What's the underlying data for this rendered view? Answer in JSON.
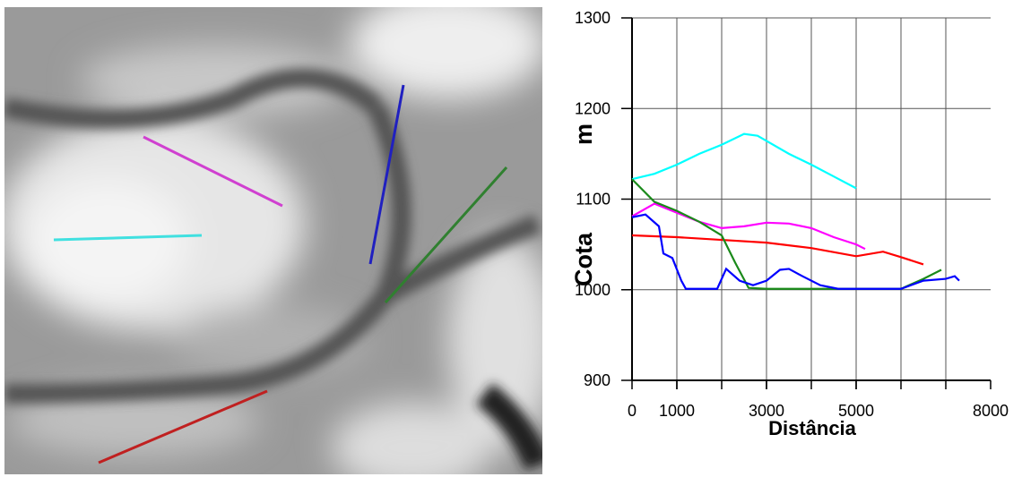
{
  "chart_data": {
    "type": "line",
    "y_label": "Cota",
    "y_unit": "m",
    "x_label": "Distância",
    "xlim": [
      0,
      8000
    ],
    "ylim": [
      900,
      1300
    ],
    "xticks": [
      0,
      1000,
      3000,
      5000,
      8000
    ],
    "xgrid": [
      1000,
      2000,
      3000,
      4000,
      5000,
      6000,
      7000
    ],
    "yticks": [
      900,
      1000,
      1100,
      1200,
      1300
    ],
    "grid": true,
    "series": [
      {
        "color": "#00ffff",
        "x": [
          0,
          500,
          1000,
          1500,
          2000,
          2500,
          2800,
          3500,
          4000,
          4500,
          5000
        ],
        "values": [
          1122,
          1128,
          1138,
          1150,
          1160,
          1172,
          1170,
          1150,
          1138,
          1125,
          1112
        ]
      },
      {
        "color": "#ff00ff",
        "x": [
          0,
          500,
          1000,
          1500,
          2000,
          2500,
          3000,
          3500,
          4000,
          4500,
          5000,
          5200
        ],
        "values": [
          1081,
          1095,
          1085,
          1075,
          1068,
          1070,
          1074,
          1073,
          1068,
          1058,
          1050,
          1045
        ]
      },
      {
        "color": "#ff0000",
        "x": [
          0,
          1000,
          2000,
          3000,
          4000,
          5000,
          5600,
          6000,
          6500
        ],
        "values": [
          1060,
          1058,
          1055,
          1052,
          1046,
          1037,
          1042,
          1036,
          1028
        ]
      },
      {
        "color": "#1a8a1a",
        "x": [
          0,
          500,
          1000,
          1500,
          2000,
          2300,
          2600,
          3000,
          4000,
          4500,
          5000,
          6000,
          6500,
          6900
        ],
        "values": [
          1122,
          1097,
          1087,
          1075,
          1060,
          1030,
          1002,
          1001,
          1001,
          1001,
          1001,
          1001,
          1012,
          1022
        ]
      },
      {
        "color": "#0000ff",
        "x": [
          0,
          300,
          600,
          700,
          900,
          1100,
          1200,
          1900,
          2100,
          2400,
          2700,
          3000,
          3300,
          3500,
          3800,
          4200,
          4600,
          6000,
          6500,
          7000,
          7200,
          7300
        ],
        "values": [
          1080,
          1083,
          1070,
          1040,
          1035,
          1010,
          1001,
          1001,
          1023,
          1010,
          1005,
          1010,
          1022,
          1023,
          1015,
          1005,
          1001,
          1001,
          1010,
          1012,
          1015,
          1010
        ]
      }
    ]
  }
}
